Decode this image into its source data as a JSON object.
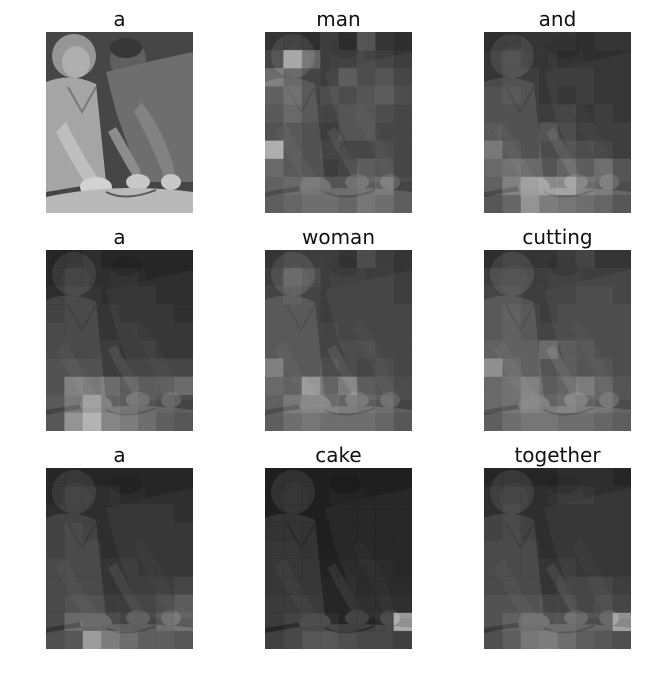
{
  "figure": {
    "panels": [
      {
        "word": "a",
        "brightness": []
      },
      {
        "word": "man",
        "brightness": [
          [
            0.25,
            0.22,
            0.2,
            0.3,
            0.2,
            0.45,
            0.25,
            0.2
          ],
          [
            0.35,
            0.85,
            0.55,
            0.3,
            0.3,
            0.35,
            0.3,
            0.25
          ],
          [
            0.6,
            0.45,
            0.35,
            0.3,
            0.45,
            0.35,
            0.4,
            0.3
          ],
          [
            0.4,
            0.5,
            0.35,
            0.4,
            0.35,
            0.4,
            0.45,
            0.35
          ],
          [
            0.35,
            0.45,
            0.35,
            0.35,
            0.4,
            0.4,
            0.35,
            0.3
          ],
          [
            0.3,
            0.35,
            0.3,
            0.3,
            0.4,
            0.4,
            0.3,
            0.3
          ],
          [
            0.9,
            0.35,
            0.3,
            0.35,
            0.3,
            0.3,
            0.35,
            0.3
          ],
          [
            0.45,
            0.35,
            0.3,
            0.3,
            0.35,
            0.45,
            0.4,
            0.3
          ],
          [
            0.4,
            0.45,
            0.5,
            0.45,
            0.45,
            0.5,
            0.55,
            0.35
          ],
          [
            0.35,
            0.4,
            0.45,
            0.45,
            0.4,
            0.5,
            0.45,
            0.35
          ]
        ]
      },
      {
        "word": "and",
        "brightness": [
          [
            0.2,
            0.2,
            0.25,
            0.25,
            0.25,
            0.2,
            0.25,
            0.25
          ],
          [
            0.25,
            0.3,
            0.25,
            0.25,
            0.2,
            0.2,
            0.2,
            0.2
          ],
          [
            0.25,
            0.3,
            0.3,
            0.25,
            0.25,
            0.25,
            0.2,
            0.2
          ],
          [
            0.3,
            0.35,
            0.3,
            0.25,
            0.2,
            0.25,
            0.2,
            0.2
          ],
          [
            0.3,
            0.3,
            0.3,
            0.3,
            0.3,
            0.2,
            0.25,
            0.2
          ],
          [
            0.35,
            0.3,
            0.3,
            0.45,
            0.35,
            0.25,
            0.25,
            0.25
          ],
          [
            0.55,
            0.35,
            0.3,
            0.4,
            0.4,
            0.35,
            0.3,
            0.25
          ],
          [
            0.45,
            0.5,
            0.45,
            0.45,
            0.55,
            0.45,
            0.55,
            0.4
          ],
          [
            0.4,
            0.6,
            0.75,
            0.8,
            0.8,
            0.6,
            0.55,
            0.4
          ],
          [
            0.3,
            0.4,
            0.7,
            0.55,
            0.5,
            0.45,
            0.4,
            0.3
          ]
        ]
      },
      {
        "word": "a",
        "brightness": [
          [
            0.15,
            0.15,
            0.2,
            0.15,
            0.15,
            0.15,
            0.15,
            0.15
          ],
          [
            0.15,
            0.2,
            0.2,
            0.2,
            0.2,
            0.15,
            0.15,
            0.15
          ],
          [
            0.2,
            0.25,
            0.25,
            0.2,
            0.2,
            0.2,
            0.15,
            0.15
          ],
          [
            0.2,
            0.25,
            0.25,
            0.25,
            0.2,
            0.2,
            0.2,
            0.15
          ],
          [
            0.25,
            0.25,
            0.25,
            0.25,
            0.25,
            0.2,
            0.2,
            0.2
          ],
          [
            0.25,
            0.25,
            0.25,
            0.3,
            0.25,
            0.25,
            0.2,
            0.2
          ],
          [
            0.3,
            0.3,
            0.3,
            0.3,
            0.3,
            0.3,
            0.3,
            0.3
          ],
          [
            0.3,
            0.6,
            0.55,
            0.6,
            0.5,
            0.45,
            0.45,
            0.55
          ],
          [
            0.35,
            0.55,
            0.75,
            0.55,
            0.5,
            0.45,
            0.4,
            0.35
          ],
          [
            0.3,
            0.7,
            0.9,
            0.6,
            0.55,
            0.45,
            0.35,
            0.3
          ]
        ]
      },
      {
        "word": "woman",
        "brightness": [
          [
            0.25,
            0.3,
            0.3,
            0.3,
            0.25,
            0.4,
            0.3,
            0.25
          ],
          [
            0.3,
            0.45,
            0.4,
            0.3,
            0.3,
            0.3,
            0.3,
            0.25
          ],
          [
            0.35,
            0.4,
            0.35,
            0.3,
            0.3,
            0.3,
            0.3,
            0.25
          ],
          [
            0.35,
            0.35,
            0.35,
            0.3,
            0.3,
            0.3,
            0.3,
            0.3
          ],
          [
            0.35,
            0.35,
            0.35,
            0.35,
            0.3,
            0.3,
            0.3,
            0.3
          ],
          [
            0.35,
            0.35,
            0.35,
            0.35,
            0.35,
            0.35,
            0.3,
            0.3
          ],
          [
            0.6,
            0.35,
            0.35,
            0.4,
            0.35,
            0.3,
            0.35,
            0.3
          ],
          [
            0.45,
            0.4,
            0.75,
            0.55,
            0.7,
            0.45,
            0.4,
            0.35
          ],
          [
            0.4,
            0.55,
            0.6,
            0.6,
            0.55,
            0.5,
            0.45,
            0.35
          ],
          [
            0.35,
            0.45,
            0.5,
            0.45,
            0.45,
            0.45,
            0.4,
            0.3
          ]
        ]
      },
      {
        "word": "cutting",
        "brightness": [
          [
            0.2,
            0.25,
            0.25,
            0.25,
            0.3,
            0.35,
            0.25,
            0.25
          ],
          [
            0.3,
            0.3,
            0.3,
            0.3,
            0.3,
            0.3,
            0.3,
            0.3
          ],
          [
            0.35,
            0.35,
            0.3,
            0.3,
            0.3,
            0.35,
            0.35,
            0.3
          ],
          [
            0.35,
            0.4,
            0.35,
            0.3,
            0.35,
            0.35,
            0.35,
            0.35
          ],
          [
            0.35,
            0.4,
            0.35,
            0.35,
            0.35,
            0.35,
            0.35,
            0.35
          ],
          [
            0.4,
            0.4,
            0.4,
            0.6,
            0.45,
            0.4,
            0.35,
            0.35
          ],
          [
            0.7,
            0.45,
            0.4,
            0.45,
            0.45,
            0.4,
            0.4,
            0.35
          ],
          [
            0.45,
            0.5,
            0.6,
            0.5,
            0.55,
            0.65,
            0.5,
            0.4
          ],
          [
            0.45,
            0.5,
            0.6,
            0.55,
            0.6,
            0.55,
            0.5,
            0.4
          ],
          [
            0.35,
            0.45,
            0.5,
            0.5,
            0.45,
            0.45,
            0.4,
            0.35
          ]
        ]
      },
      {
        "word": "a",
        "brightness": [
          [
            0.15,
            0.15,
            0.15,
            0.15,
            0.15,
            0.15,
            0.15,
            0.15
          ],
          [
            0.15,
            0.2,
            0.2,
            0.2,
            0.15,
            0.15,
            0.15,
            0.15
          ],
          [
            0.2,
            0.2,
            0.2,
            0.2,
            0.2,
            0.2,
            0.2,
            0.15
          ],
          [
            0.2,
            0.25,
            0.2,
            0.2,
            0.2,
            0.2,
            0.2,
            0.2
          ],
          [
            0.2,
            0.25,
            0.25,
            0.2,
            0.2,
            0.2,
            0.2,
            0.2
          ],
          [
            0.25,
            0.25,
            0.25,
            0.25,
            0.25,
            0.2,
            0.2,
            0.2
          ],
          [
            0.25,
            0.25,
            0.25,
            0.25,
            0.25,
            0.25,
            0.25,
            0.3
          ],
          [
            0.25,
            0.3,
            0.3,
            0.3,
            0.3,
            0.3,
            0.35,
            0.45
          ],
          [
            0.25,
            0.45,
            0.4,
            0.4,
            0.35,
            0.35,
            0.45,
            0.5
          ],
          [
            0.25,
            0.3,
            0.75,
            0.55,
            0.45,
            0.35,
            0.35,
            0.3
          ]
        ]
      },
      {
        "word": "cake",
        "brightness": [
          [
            0.1,
            0.1,
            0.1,
            0.1,
            0.1,
            0.1,
            0.1,
            0.1
          ],
          [
            0.1,
            0.1,
            0.1,
            0.1,
            0.1,
            0.1,
            0.1,
            0.1
          ],
          [
            0.1,
            0.1,
            0.1,
            0.1,
            0.1,
            0.1,
            0.1,
            0.1
          ],
          [
            0.1,
            0.1,
            0.1,
            0.1,
            0.1,
            0.1,
            0.1,
            0.1
          ],
          [
            0.12,
            0.12,
            0.1,
            0.1,
            0.1,
            0.1,
            0.1,
            0.1
          ],
          [
            0.12,
            0.12,
            0.12,
            0.12,
            0.12,
            0.12,
            0.12,
            0.1
          ],
          [
            0.12,
            0.12,
            0.12,
            0.15,
            0.15,
            0.12,
            0.12,
            0.12
          ],
          [
            0.15,
            0.15,
            0.15,
            0.15,
            0.15,
            0.15,
            0.15,
            0.15
          ],
          [
            0.15,
            0.2,
            0.2,
            0.2,
            0.15,
            0.15,
            0.2,
            0.85
          ],
          [
            0.15,
            0.2,
            0.3,
            0.3,
            0.25,
            0.2,
            0.2,
            0.15
          ]
        ]
      },
      {
        "word": "together",
        "brightness": [
          [
            0.15,
            0.15,
            0.15,
            0.15,
            0.2,
            0.2,
            0.2,
            0.15
          ],
          [
            0.2,
            0.2,
            0.2,
            0.2,
            0.25,
            0.25,
            0.2,
            0.2
          ],
          [
            0.2,
            0.25,
            0.2,
            0.2,
            0.2,
            0.2,
            0.2,
            0.2
          ],
          [
            0.2,
            0.25,
            0.2,
            0.2,
            0.2,
            0.2,
            0.2,
            0.2
          ],
          [
            0.25,
            0.25,
            0.25,
            0.2,
            0.2,
            0.2,
            0.2,
            0.2
          ],
          [
            0.25,
            0.25,
            0.25,
            0.25,
            0.25,
            0.2,
            0.2,
            0.2
          ],
          [
            0.25,
            0.25,
            0.25,
            0.25,
            0.3,
            0.3,
            0.3,
            0.25
          ],
          [
            0.3,
            0.3,
            0.3,
            0.35,
            0.35,
            0.3,
            0.35,
            0.3
          ],
          [
            0.3,
            0.4,
            0.45,
            0.45,
            0.45,
            0.4,
            0.4,
            0.8
          ],
          [
            0.25,
            0.35,
            0.5,
            0.55,
            0.45,
            0.35,
            0.3,
            0.25
          ]
        ]
      }
    ]
  }
}
